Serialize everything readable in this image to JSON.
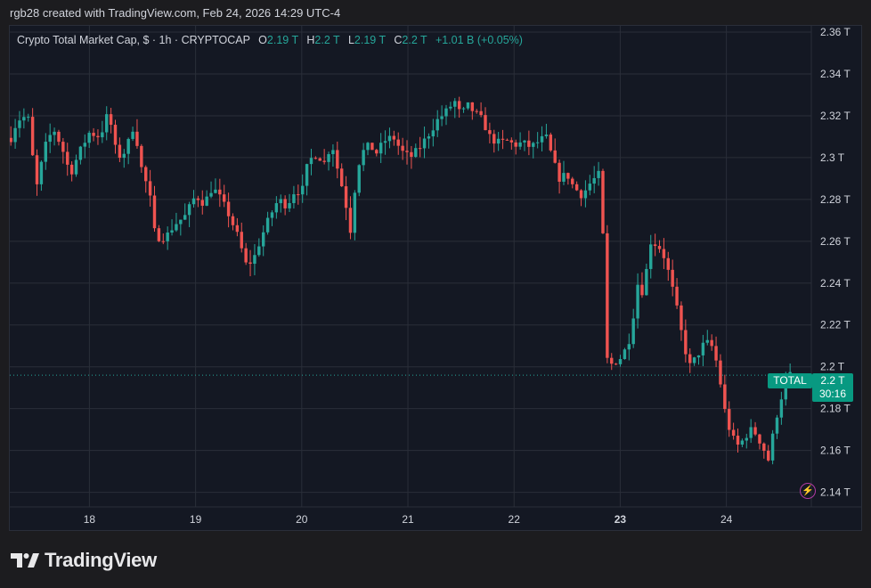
{
  "credit": "rgb28 created with TradingView.com, Feb 24, 2026 14:29 UTC-4",
  "legend": {
    "symbol": "Crypto Total Market Cap, $ · 1h · CRYPTOCAP",
    "o_label": "O",
    "o_value": "2.19 T",
    "h_label": "H",
    "h_value": "2.2 T",
    "l_label": "L",
    "l_value": "2.19 T",
    "c_label": "C",
    "c_value": "2.2 T",
    "change": "+1.01 B (+0.05%)"
  },
  "price_tag": {
    "name": "TOTAL",
    "price": "2.2 T",
    "countdown": "30:16"
  },
  "brand": "TradingView",
  "colors": {
    "up": "#26a69a",
    "down": "#ef5350",
    "background": "#141823",
    "grid": "#2a2e39",
    "last_price_line": "#26a69a"
  },
  "chart_data": {
    "type": "candlestick",
    "x_range": [
      17.25,
      24.8
    ],
    "ylim": [
      2.133,
      2.363
    ],
    "yticks": [
      2.14,
      2.16,
      2.18,
      2.2,
      2.22,
      2.24,
      2.26,
      2.28,
      2.3,
      2.32,
      2.34,
      2.36
    ],
    "ytick_labels": [
      "2.14 T",
      "2.16 T",
      "2.18 T",
      "2.2 T",
      "2.22 T",
      "2.24 T",
      "2.26 T",
      "2.28 T",
      "2.3 T",
      "2.32 T",
      "2.34 T",
      "2.36 T"
    ],
    "xticks": [
      18,
      19,
      20,
      21,
      22,
      23,
      24
    ],
    "xtick_labels": [
      "18",
      "19",
      "20",
      "21",
      "22",
      "23",
      "24"
    ],
    "bold_xtick": "23",
    "last_price": 2.196,
    "anchors": [
      [
        17.25,
        2.308
      ],
      [
        17.32,
        2.318
      ],
      [
        17.42,
        2.32
      ],
      [
        17.5,
        2.285
      ],
      [
        17.58,
        2.305
      ],
      [
        17.66,
        2.314
      ],
      [
        17.74,
        2.305
      ],
      [
        17.82,
        2.292
      ],
      [
        17.9,
        2.302
      ],
      [
        18.0,
        2.312
      ],
      [
        18.1,
        2.31
      ],
      [
        18.18,
        2.322
      ],
      [
        18.26,
        2.3
      ],
      [
        18.34,
        2.303
      ],
      [
        18.42,
        2.316
      ],
      [
        18.5,
        2.292
      ],
      [
        18.56,
        2.285
      ],
      [
        18.62,
        2.262
      ],
      [
        18.72,
        2.262
      ],
      [
        18.8,
        2.268
      ],
      [
        18.9,
        2.272
      ],
      [
        19.0,
        2.282
      ],
      [
        19.08,
        2.278
      ],
      [
        19.16,
        2.286
      ],
      [
        19.24,
        2.28
      ],
      [
        19.32,
        2.272
      ],
      [
        19.4,
        2.262
      ],
      [
        19.48,
        2.248
      ],
      [
        19.55,
        2.252
      ],
      [
        19.62,
        2.262
      ],
      [
        19.7,
        2.272
      ],
      [
        19.78,
        2.28
      ],
      [
        19.86,
        2.277
      ],
      [
        19.94,
        2.285
      ],
      [
        20.0,
        2.283
      ],
      [
        20.06,
        2.298
      ],
      [
        20.14,
        2.302
      ],
      [
        20.22,
        2.297
      ],
      [
        20.28,
        2.308
      ],
      [
        20.34,
        2.294
      ],
      [
        20.4,
        2.282
      ],
      [
        20.46,
        2.265
      ],
      [
        20.52,
        2.295
      ],
      [
        20.58,
        2.303
      ],
      [
        20.64,
        2.306
      ],
      [
        20.7,
        2.302
      ],
      [
        20.78,
        2.308
      ],
      [
        20.86,
        2.31
      ],
      [
        20.94,
        2.303
      ],
      [
        21.02,
        2.3
      ],
      [
        21.1,
        2.304
      ],
      [
        21.18,
        2.31
      ],
      [
        21.28,
        2.318
      ],
      [
        21.36,
        2.322
      ],
      [
        21.44,
        2.327
      ],
      [
        21.5,
        2.32
      ],
      [
        21.56,
        2.325
      ],
      [
        21.62,
        2.322
      ],
      [
        21.7,
        2.318
      ],
      [
        21.78,
        2.309
      ],
      [
        21.86,
        2.307
      ],
      [
        21.94,
        2.308
      ],
      [
        22.0,
        2.306
      ],
      [
        22.08,
        2.307
      ],
      [
        22.16,
        2.305
      ],
      [
        22.24,
        2.308
      ],
      [
        22.3,
        2.31
      ],
      [
        22.36,
        2.3
      ],
      [
        22.42,
        2.29
      ],
      [
        22.5,
        2.292
      ],
      [
        22.56,
        2.286
      ],
      [
        22.64,
        2.282
      ],
      [
        22.72,
        2.288
      ],
      [
        22.8,
        2.292
      ],
      [
        22.84,
        2.26
      ],
      [
        22.88,
        2.2
      ],
      [
        22.94,
        2.202
      ],
      [
        23.02,
        2.205
      ],
      [
        23.1,
        2.215
      ],
      [
        23.16,
        2.24
      ],
      [
        23.22,
        2.235
      ],
      [
        23.28,
        2.26
      ],
      [
        23.36,
        2.258
      ],
      [
        23.42,
        2.252
      ],
      [
        23.48,
        2.24
      ],
      [
        23.54,
        2.226
      ],
      [
        23.6,
        2.21
      ],
      [
        23.66,
        2.2
      ],
      [
        23.72,
        2.205
      ],
      [
        23.8,
        2.212
      ],
      [
        23.86,
        2.21
      ],
      [
        23.92,
        2.2
      ],
      [
        23.98,
        2.18
      ],
      [
        24.04,
        2.168
      ],
      [
        24.1,
        2.162
      ],
      [
        24.16,
        2.165
      ],
      [
        24.22,
        2.17
      ],
      [
        24.28,
        2.168
      ],
      [
        24.34,
        2.162
      ],
      [
        24.4,
        2.155
      ],
      [
        24.44,
        2.168
      ],
      [
        24.48,
        2.178
      ],
      [
        24.54,
        2.19
      ],
      [
        24.6,
        2.196
      ]
    ],
    "candle_count": 180,
    "wick_spread": 0.006
  }
}
